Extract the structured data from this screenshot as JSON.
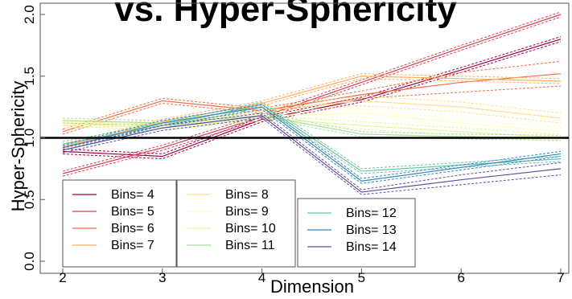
{
  "chart_data": {
    "type": "line",
    "title": "vs. Hyper-Sphericity",
    "xlabel": "Dimension",
    "ylabel": "Hyper-Sphericity",
    "x": [
      2,
      3,
      4,
      5,
      6,
      7
    ],
    "xlim": [
      2,
      7
    ],
    "ylim": [
      0,
      2.05
    ],
    "x_ticks": [
      "2",
      "3",
      "4",
      "5",
      "6",
      "7"
    ],
    "y_ticks": [
      "0.0",
      "0.5",
      "1.0",
      "1.5",
      "2.0"
    ],
    "grid": false,
    "reference_line": 1.0,
    "legend_position": "bottom-left",
    "series": [
      {
        "name": "Bins= 4",
        "color": "#9e0142",
        "values": [
          0.89,
          0.85,
          1.15,
          1.31,
          1.55,
          1.8
        ],
        "band": [
          0.02,
          0.02,
          0.02,
          0.02,
          0.02,
          0.02
        ]
      },
      {
        "name": "Bins= 5",
        "color": "#d53e4f",
        "values": [
          0.71,
          0.92,
          1.17,
          1.45,
          1.73,
          2.0
        ],
        "band": [
          0.02,
          0.02,
          0.02,
          0.02,
          0.02,
          0.02
        ]
      },
      {
        "name": "Bins= 6",
        "color": "#f46d43",
        "values": [
          1.05,
          1.3,
          1.22,
          1.35,
          1.45,
          1.52
        ],
        "band": [
          0.02,
          0.02,
          0.02,
          0.03,
          0.08,
          0.1
        ]
      },
      {
        "name": "Bins= 7",
        "color": "#fdae61",
        "values": [
          0.93,
          1.13,
          1.28,
          1.5,
          1.48,
          1.46
        ],
        "band": [
          0.02,
          0.02,
          0.02,
          0.02,
          0.02,
          0.02
        ]
      },
      {
        "name": "Bins= 8",
        "color": "#fee08b",
        "values": [
          1.1,
          1.12,
          1.22,
          1.3,
          1.25,
          1.16
        ],
        "band": [
          0.02,
          0.02,
          0.02,
          0.04,
          0.04,
          0.04
        ]
      },
      {
        "name": "Bins= 9",
        "color": "#ffffbf",
        "values": [
          1.13,
          1.1,
          1.18,
          1.2,
          1.12,
          1.05
        ],
        "band": [
          0.02,
          0.02,
          0.02,
          0.03,
          0.03,
          0.03
        ]
      },
      {
        "name": "Bins= 10",
        "color": "#e6f598",
        "values": [
          1.12,
          1.08,
          1.16,
          1.1,
          1.05,
          1.0
        ],
        "band": [
          0.02,
          0.02,
          0.02,
          0.03,
          0.03,
          0.03
        ]
      },
      {
        "name": "Bins= 11",
        "color": "#abdda4",
        "values": [
          1.14,
          1.12,
          1.18,
          1.03,
          1.01,
          1.0
        ],
        "band": [
          0.02,
          0.02,
          0.02,
          0.02,
          0.02,
          0.02
        ]
      },
      {
        "name": "Bins= 12",
        "color": "#66c2a5",
        "values": [
          0.95,
          1.1,
          1.27,
          0.73,
          0.78,
          0.83
        ],
        "band": [
          0.02,
          0.02,
          0.02,
          0.02,
          0.02,
          0.02
        ]
      },
      {
        "name": "Bins= 13",
        "color": "#3288bd",
        "values": [
          0.92,
          1.12,
          1.25,
          0.65,
          0.76,
          0.87
        ],
        "band": [
          0.02,
          0.02,
          0.02,
          0.02,
          0.02,
          0.02
        ]
      },
      {
        "name": "Bins= 14",
        "color": "#5e4fa2",
        "values": [
          0.9,
          1.08,
          1.18,
          0.56,
          0.66,
          0.75
        ],
        "band": [
          0.02,
          0.02,
          0.02,
          0.02,
          0.04,
          0.05
        ]
      }
    ],
    "legend_groups": [
      [
        0,
        1,
        2,
        3
      ],
      [
        4,
        5,
        6,
        7
      ],
      [
        8,
        9,
        10
      ]
    ]
  }
}
